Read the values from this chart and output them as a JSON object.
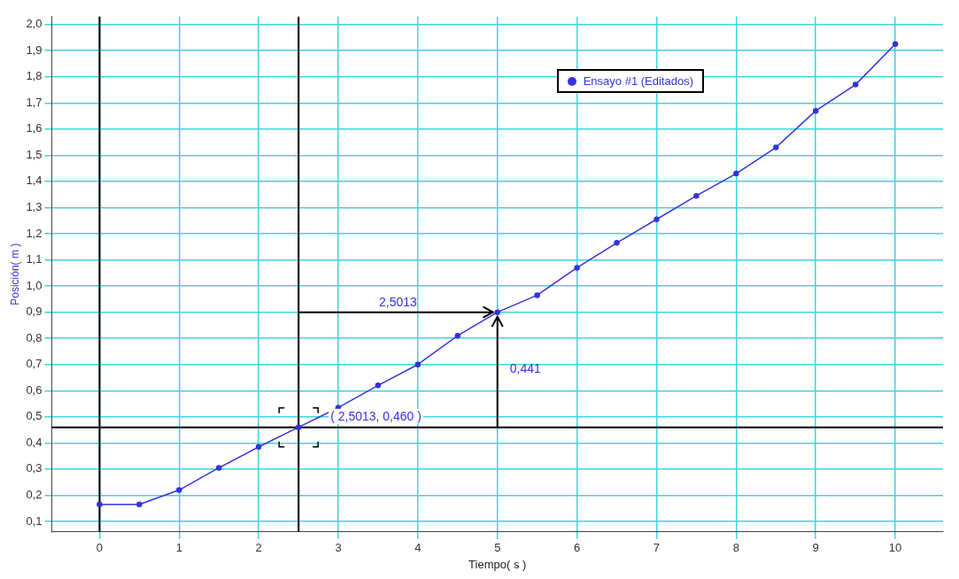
{
  "chart_data": {
    "type": "line",
    "xlabel": "Tiempo( s )",
    "ylabel": "Posición( m )",
    "xlim": [
      -0.6,
      10.6
    ],
    "ylim": [
      0.06,
      2.03
    ],
    "xticks": [
      0,
      1,
      2,
      3,
      4,
      5,
      6,
      7,
      8,
      9,
      10
    ],
    "yticks": [
      {
        "value": 0.1,
        "label": "0,1"
      },
      {
        "value": 0.2,
        "label": "0,2"
      },
      {
        "value": 0.3,
        "label": "0,3"
      },
      {
        "value": 0.4,
        "label": "0,4"
      },
      {
        "value": 0.5,
        "label": "0,5"
      },
      {
        "value": 0.6,
        "label": "0,6"
      },
      {
        "value": 0.7,
        "label": "0,7"
      },
      {
        "value": 0.8,
        "label": "0,8"
      },
      {
        "value": 0.9,
        "label": "0,9"
      },
      {
        "value": 1.0,
        "label": "1,0"
      },
      {
        "value": 1.1,
        "label": "1,1"
      },
      {
        "value": 1.2,
        "label": "1,2"
      },
      {
        "value": 1.3,
        "label": "1,3"
      },
      {
        "value": 1.4,
        "label": "1,4"
      },
      {
        "value": 1.5,
        "label": "1,5"
      },
      {
        "value": 1.6,
        "label": "1,6"
      },
      {
        "value": 1.7,
        "label": "1,7"
      },
      {
        "value": 1.8,
        "label": "1,8"
      },
      {
        "value": 1.9,
        "label": "1,9"
      },
      {
        "value": 2.0,
        "label": "2,0"
      }
    ],
    "x": [
      0,
      0.5,
      1,
      1.5,
      2,
      2.5,
      3,
      3.5,
      4,
      4.5,
      5,
      5.5,
      6,
      6.5,
      7,
      7.5,
      8,
      8.5,
      9,
      9.5,
      10
    ],
    "series": [
      {
        "name": "Ensayo #1 (Editados)",
        "color": "#3333dd",
        "marker": "circle",
        "values": [
          0.165,
          0.165,
          0.22,
          0.305,
          0.385,
          0.46,
          0.535,
          0.62,
          0.7,
          0.81,
          0.9,
          0.965,
          1.07,
          1.165,
          1.255,
          1.345,
          1.43,
          1.53,
          1.67,
          1.77,
          1.925
        ]
      }
    ],
    "ref_lines": [
      {
        "axis": "x",
        "value": 0,
        "color": "#000000"
      },
      {
        "axis": "x",
        "value": 2.5013,
        "color": "#000000"
      },
      {
        "axis": "y",
        "value": 0.46,
        "color": "#000000"
      }
    ],
    "annotations": [
      "2,5013",
      "0,441",
      {
        "text": "( 2,5013, 0,460 )",
        "x": 2.5013,
        "y": 0.46
      }
    ],
    "grid": true,
    "legend": "top right"
  }
}
